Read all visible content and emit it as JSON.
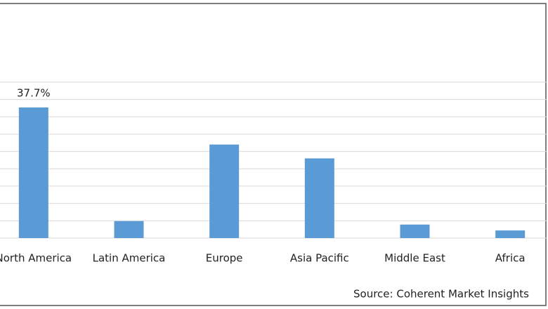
{
  "chart_data": {
    "type": "bar",
    "categories": [
      "North America",
      "Latin America",
      "Europe",
      "Asia Pacific",
      "Middle East",
      "Africa"
    ],
    "values": [
      37.7,
      4.9,
      27.0,
      23.0,
      3.9,
      2.2
    ],
    "value_labels": [
      "37.7%",
      null,
      null,
      null,
      null,
      null
    ],
    "color": "#5b9bd5",
    "ylim": [
      0,
      45
    ],
    "yticks": [
      0,
      5,
      10,
      15,
      20,
      25,
      30,
      35,
      40,
      45
    ],
    "grid": true,
    "source": "Source: Coherent Market Insights"
  }
}
